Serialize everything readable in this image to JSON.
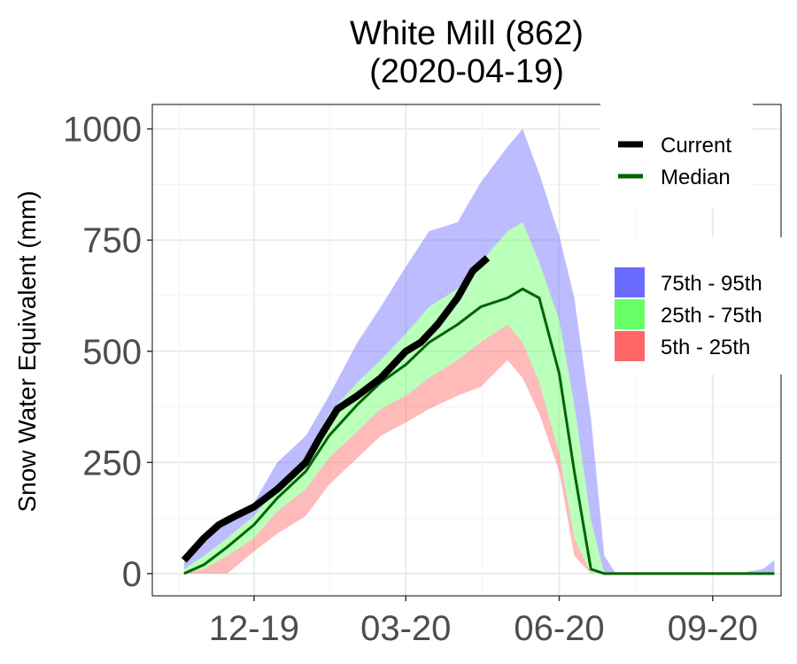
{
  "chart_data": {
    "type": "area",
    "title": [
      "White Mill (862)",
      "(2020-04-19)"
    ],
    "xlabel": "",
    "ylabel": "Snow Water Equivalent (mm)",
    "ylim": [
      -50,
      1055
    ],
    "xlim": [
      "2019-10-01",
      "2020-10-12"
    ],
    "yticks": [
      0,
      250,
      500,
      750,
      1000
    ],
    "xticks": [
      {
        "date": "2019-12-01",
        "label": "12-19"
      },
      {
        "date": "2020-03-01",
        "label": "03-20"
      },
      {
        "date": "2020-06-01",
        "label": "06-20"
      },
      {
        "date": "2020-09-01",
        "label": "09-20"
      }
    ],
    "grid": true,
    "legend_position": "right",
    "colors": {
      "current": "#000000",
      "median": "#006400",
      "p75_95": "#6b6bff",
      "p25_75": "#66ff66",
      "p5_25": "#ff6666"
    },
    "legend": {
      "lines": [
        {
          "key": "current",
          "label": "Current"
        },
        {
          "key": "median",
          "label": "Median"
        }
      ],
      "bands": [
        {
          "key": "p75_95",
          "label": "75th - 95th"
        },
        {
          "key": "p25_75",
          "label": "25th - 75th"
        },
        {
          "key": "p5_25",
          "label": "5th - 25th"
        }
      ]
    },
    "x": [
      "2019-10-20",
      "2019-11-01",
      "2019-11-15",
      "2019-12-01",
      "2019-12-15",
      "2020-01-01",
      "2020-01-15",
      "2020-02-01",
      "2020-02-15",
      "2020-03-01",
      "2020-03-15",
      "2020-04-01",
      "2020-04-15",
      "2020-05-01",
      "2020-05-10",
      "2020-05-20",
      "2020-06-01",
      "2020-06-10",
      "2020-06-20",
      "2020-06-28",
      "2020-07-05",
      "2020-07-15",
      "2020-08-01",
      "2020-08-15",
      "2020-09-01",
      "2020-09-15",
      "2020-10-01",
      "2020-10-08"
    ],
    "series": [
      {
        "key": "p95",
        "values": [
          30,
          80,
          120,
          160,
          250,
          310,
          400,
          520,
          600,
          690,
          770,
          790,
          880,
          960,
          1000,
          900,
          760,
          620,
          350,
          40,
          0,
          0,
          0,
          0,
          0,
          0,
          10,
          30
        ]
      },
      {
        "key": "p75",
        "values": [
          10,
          40,
          80,
          130,
          190,
          250,
          360,
          430,
          480,
          540,
          600,
          640,
          700,
          770,
          790,
          700,
          570,
          380,
          120,
          0,
          0,
          0,
          0,
          0,
          0,
          0,
          0,
          0
        ]
      },
      {
        "key": "p25",
        "values": [
          0,
          10,
          40,
          80,
          140,
          190,
          260,
          320,
          370,
          400,
          440,
          480,
          520,
          560,
          520,
          430,
          270,
          80,
          0,
          0,
          0,
          0,
          0,
          0,
          0,
          0,
          0,
          0
        ]
      },
      {
        "key": "p5",
        "values": [
          0,
          0,
          0,
          50,
          90,
          130,
          200,
          260,
          310,
          340,
          370,
          400,
          420,
          480,
          440,
          360,
          230,
          40,
          0,
          0,
          0,
          0,
          0,
          0,
          0,
          0,
          0,
          0
        ]
      },
      {
        "key": "median",
        "values": [
          0,
          20,
          60,
          110,
          170,
          230,
          310,
          380,
          430,
          470,
          520,
          560,
          600,
          620,
          640,
          620,
          450,
          230,
          10,
          0,
          0,
          0,
          0,
          0,
          0,
          0,
          0,
          0
        ]
      }
    ],
    "current": {
      "x": [
        "2019-10-20",
        "2019-11-01",
        "2019-11-10",
        "2019-11-20",
        "2019-12-01",
        "2019-12-15",
        "2020-01-01",
        "2020-01-10",
        "2020-01-20",
        "2020-02-01",
        "2020-02-15",
        "2020-03-01",
        "2020-03-10",
        "2020-03-20",
        "2020-04-01",
        "2020-04-10",
        "2020-04-19"
      ],
      "values": [
        30,
        80,
        110,
        130,
        150,
        190,
        250,
        310,
        370,
        400,
        440,
        500,
        520,
        560,
        620,
        680,
        710
      ]
    }
  }
}
